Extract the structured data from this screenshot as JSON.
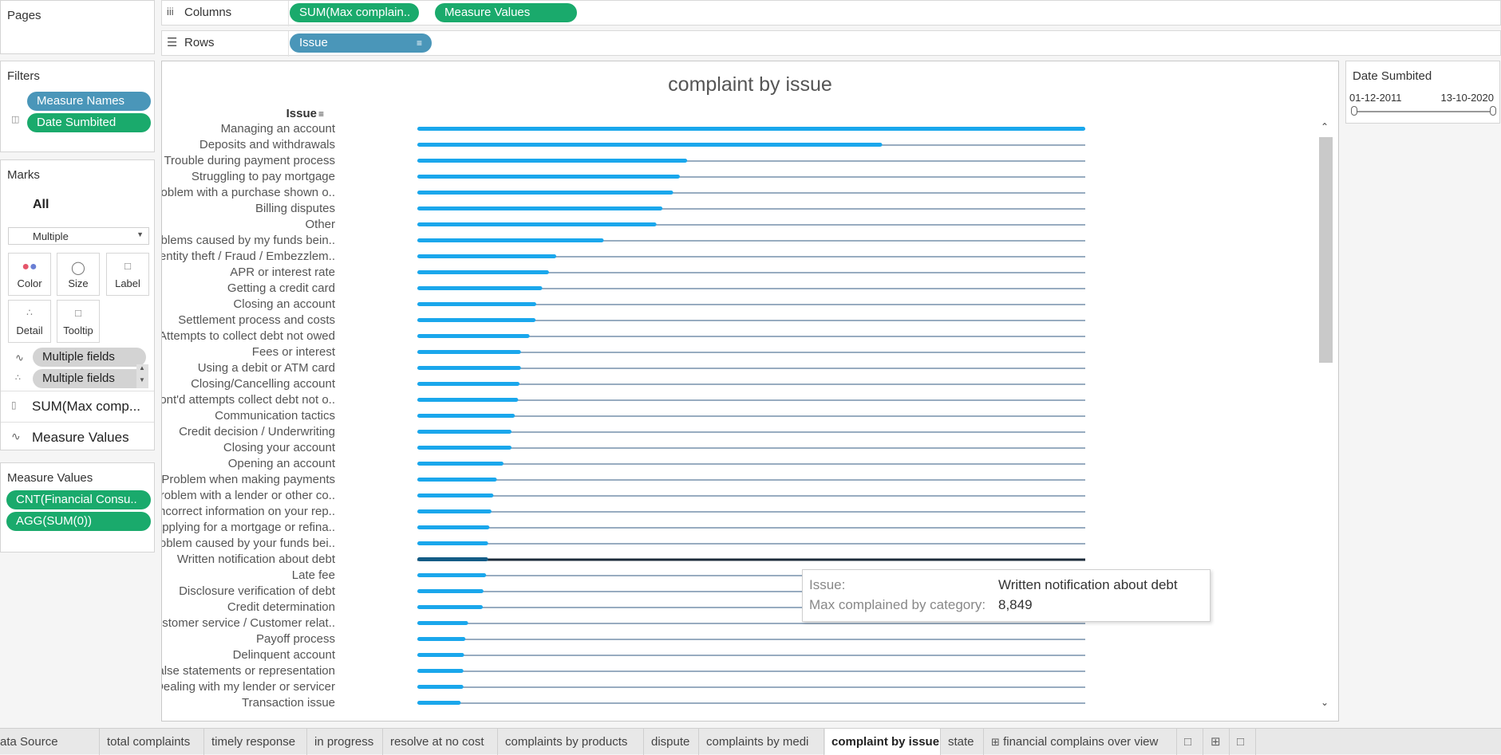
{
  "shelves": {
    "pages_label": "Pages",
    "columns_label": "Columns",
    "rows_label": "Rows",
    "columns_pills": [
      "SUM(Max complain..",
      "Measure Values"
    ],
    "rows_pill": "Issue"
  },
  "filters": {
    "title": "Filters",
    "items": [
      "Measure Names",
      "Date Sumbited"
    ]
  },
  "marks": {
    "title": "Marks",
    "all_label": "All",
    "type_select": "Multiple",
    "buttons": [
      "Color",
      "Size",
      "Label",
      "Detail",
      "Tooltip"
    ],
    "field_pills": [
      "Multiple fields",
      "Multiple fields"
    ],
    "measure_cards": [
      "SUM(Max comp...",
      "Measure Values"
    ]
  },
  "measure_values": {
    "title": "Measure Values",
    "items": [
      "CNT(Financial Consu..",
      "AGG(SUM(0))"
    ]
  },
  "date_filter": {
    "title": "Date Sumbited",
    "start": "01-12-2011",
    "end": "13-10-2020"
  },
  "tooltip": {
    "issue_label": "Issue:",
    "issue_value": "Written notification about debt",
    "measure_label": "Max complained by category:",
    "measure_value": "8,849"
  },
  "tabs": [
    "ata Source",
    "total complaints",
    "timely response",
    "in progress",
    "resolve at no cost",
    "complaints by products",
    "dispute",
    "complaints by medi",
    "complaint by issue",
    "state",
    "financial complains over view"
  ],
  "active_tab": "complaint by issue",
  "colors": {
    "bar": "#1aa7ec",
    "line": "#5a7a9a",
    "highlight_line": "#1c2b3a",
    "green_pill": "#1aaa6c",
    "blue_pill": "#4a96b9"
  },
  "chart_data": {
    "type": "bar",
    "title": "complaint by issue",
    "row_header": "Issue",
    "categories": [
      "Managing an account",
      "Deposits and withdrawals",
      "Trouble during payment process",
      "Struggling to pay mortgage",
      "Problem with a purchase shown o..",
      "Billing disputes",
      "Other",
      "Problems caused by my funds bein..",
      "Identity theft / Fraud / Embezzlem..",
      "APR or interest rate",
      "Getting a credit card",
      "Closing an account",
      "Settlement process and costs",
      "Attempts to collect debt not owed",
      "Fees or interest",
      "Using a debit or ATM card",
      "Closing/Cancelling account",
      "Cont'd attempts collect debt not o..",
      "Communication tactics",
      "Credit decision / Underwriting",
      "Closing your account",
      "Opening an account",
      "Problem when making payments",
      "Problem with a lender or other co..",
      "Incorrect information on your rep..",
      "Applying for a mortgage or refina..",
      "Problem caused by your funds bei..",
      "Written notification about debt",
      "Late fee",
      "Disclosure verification of debt",
      "Credit determination",
      "Customer service / Customer relat..",
      "Payoff process",
      "Delinquent account",
      "False statements or representation",
      "Dealing with my lender or servicer",
      "Transaction issue"
    ],
    "values": [
      1.0,
      0.696,
      0.404,
      0.393,
      0.383,
      0.367,
      0.358,
      0.279,
      0.208,
      0.197,
      0.187,
      0.178,
      0.177,
      0.168,
      0.155,
      0.155,
      0.153,
      0.151,
      0.146,
      0.141,
      0.141,
      0.129,
      0.119,
      0.114,
      0.111,
      0.108,
      0.106,
      0.106,
      0.103,
      0.099,
      0.098,
      0.076,
      0.072,
      0.07,
      0.069,
      0.069,
      0.065
    ],
    "highlighted": "Written notification about debt"
  }
}
